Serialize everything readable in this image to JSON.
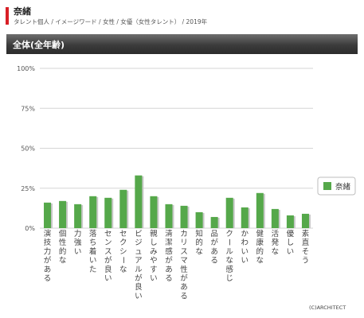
{
  "header": {
    "title": "奈緒",
    "breadcrumb": "タレント個人 / イメージワード / 女性 / 女優（女性タレント） / 2019年"
  },
  "section": {
    "title": "全体(全年齢)"
  },
  "credit": "(C)ARCHITECT",
  "colors": {
    "accent": "#d81f26",
    "bar": "#55a84a",
    "bar_shadow": "#c8c8c8",
    "grid": "#d6d6d6"
  },
  "chart_data": {
    "type": "bar",
    "categories": [
      "演技力がある",
      "個性的な",
      "力強い",
      "落ち着いた",
      "センスが良い",
      "セクシーな",
      "ビジュアルが良い",
      "親しみやすい",
      "清潔感がある",
      "カリスマ性がある",
      "知的な",
      "品がある",
      "クールな感じ",
      "かわいい",
      "健康的な",
      "活発な",
      "優しい",
      "素直そう"
    ],
    "series": [
      {
        "name": "奈緒",
        "values": [
          16,
          17,
          15,
          20,
          19,
          24,
          33,
          20,
          15,
          14,
          10,
          7,
          19,
          13,
          22,
          12,
          8,
          9
        ]
      }
    ],
    "yticks": [
      "100%",
      "75%",
      "50%",
      "25%",
      "0%"
    ],
    "ylim": [
      0,
      100
    ],
    "grid": true,
    "legend": "right"
  }
}
